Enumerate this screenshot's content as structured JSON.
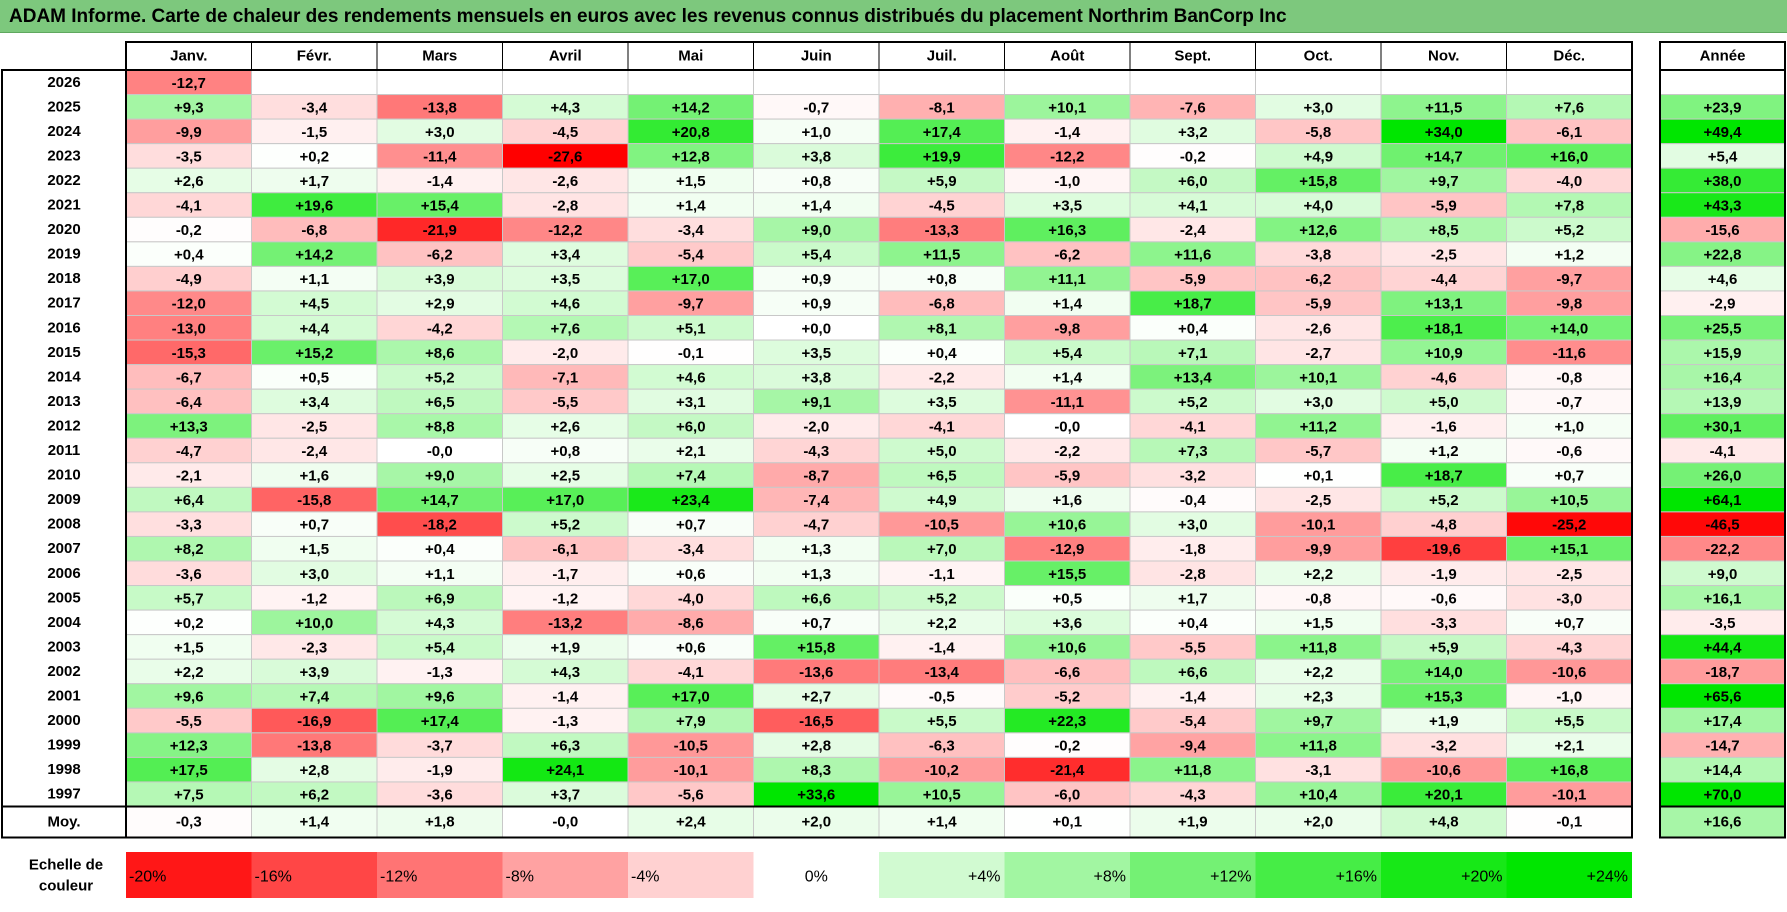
{
  "title": "ADAM Informe. Carte de chaleur des rendements mensuels en euros avec les revenus connus distribués du placement Northrim BanCorp Inc",
  "chart_data": {
    "type": "heatmap",
    "columns": [
      "Janv.",
      "Févr.",
      "Mars",
      "Avril",
      "Mai",
      "Juin",
      "Juil.",
      "Août",
      "Sept.",
      "Oct.",
      "Nov.",
      "Déc."
    ],
    "year_header": "Année",
    "rows": [
      {
        "label": "2026",
        "values": [
          "-12,7",
          "",
          "",
          "",
          "",
          "",
          "",
          "",
          "",
          "",
          "",
          ""
        ],
        "year": ""
      },
      {
        "label": "2025",
        "values": [
          "+9,3",
          "-3,4",
          "-13,8",
          "+4,3",
          "+14,2",
          "-0,7",
          "-8,1",
          "+10,1",
          "-7,6",
          "+3,0",
          "+11,5",
          "+7,6"
        ],
        "year": "+23,9"
      },
      {
        "label": "2024",
        "values": [
          "-9,9",
          "-1,5",
          "+3,0",
          "-4,5",
          "+20,8",
          "+1,0",
          "+17,4",
          "-1,4",
          "+3,2",
          "-5,8",
          "+34,0",
          "-6,1"
        ],
        "year": "+49,4"
      },
      {
        "label": "2023",
        "values": [
          "-3,5",
          "+0,2",
          "-11,4",
          "-27,6",
          "+12,8",
          "+3,8",
          "+19,9",
          "-12,2",
          "-0,2",
          "+4,9",
          "+14,7",
          "+16,0"
        ],
        "year": "+5,4"
      },
      {
        "label": "2022",
        "values": [
          "+2,6",
          "+1,7",
          "-1,4",
          "-2,6",
          "+1,5",
          "+0,8",
          "+5,9",
          "-1,0",
          "+6,0",
          "+15,8",
          "+9,7",
          "-4,0"
        ],
        "year": "+38,0"
      },
      {
        "label": "2021",
        "values": [
          "-4,1",
          "+19,6",
          "+15,4",
          "-2,8",
          "+1,4",
          "+1,4",
          "-4,5",
          "+3,5",
          "+4,1",
          "+4,0",
          "-5,9",
          "+7,8"
        ],
        "year": "+43,3"
      },
      {
        "label": "2020",
        "values": [
          "-0,2",
          "-6,8",
          "-21,9",
          "-12,2",
          "-3,4",
          "+9,0",
          "-13,3",
          "+16,3",
          "-2,4",
          "+12,6",
          "+8,5",
          "+5,2"
        ],
        "year": "-15,6"
      },
      {
        "label": "2019",
        "values": [
          "+0,4",
          "+14,2",
          "-6,2",
          "+3,4",
          "-5,4",
          "+5,4",
          "+11,5",
          "-6,2",
          "+11,6",
          "-3,8",
          "-2,5",
          "+1,2"
        ],
        "year": "+22,8"
      },
      {
        "label": "2018",
        "values": [
          "-4,9",
          "+1,1",
          "+3,9",
          "+3,5",
          "+17,0",
          "+0,9",
          "+0,8",
          "+11,1",
          "-5,9",
          "-6,2",
          "-4,4",
          "-9,7"
        ],
        "year": "+4,6"
      },
      {
        "label": "2017",
        "values": [
          "-12,0",
          "+4,5",
          "+2,9",
          "+4,6",
          "-9,7",
          "+0,9",
          "-6,8",
          "+1,4",
          "+18,7",
          "-5,9",
          "+13,1",
          "-9,8"
        ],
        "year": "-2,9"
      },
      {
        "label": "2016",
        "values": [
          "-13,0",
          "+4,4",
          "-4,2",
          "+7,6",
          "+5,1",
          "+0,0",
          "+8,1",
          "-9,8",
          "+0,4",
          "-2,6",
          "+18,1",
          "+14,0"
        ],
        "year": "+25,5"
      },
      {
        "label": "2015",
        "values": [
          "-15,3",
          "+15,2",
          "+8,6",
          "-2,0",
          "-0,1",
          "+3,5",
          "+0,4",
          "+5,4",
          "+7,1",
          "-2,7",
          "+10,9",
          "-11,6"
        ],
        "year": "+15,9"
      },
      {
        "label": "2014",
        "values": [
          "-6,7",
          "+0,5",
          "+5,2",
          "-7,1",
          "+4,6",
          "+3,8",
          "-2,2",
          "+1,4",
          "+13,4",
          "+10,1",
          "-4,6",
          "-0,8"
        ],
        "year": "+16,4"
      },
      {
        "label": "2013",
        "values": [
          "-6,4",
          "+3,4",
          "+6,5",
          "-5,5",
          "+3,1",
          "+9,1",
          "+3,5",
          "-11,1",
          "+5,2",
          "+3,0",
          "+5,0",
          "-0,7"
        ],
        "year": "+13,9"
      },
      {
        "label": "2012",
        "values": [
          "+13,3",
          "-2,5",
          "+8,8",
          "+2,6",
          "+6,0",
          "-2,0",
          "-4,1",
          "-0,0",
          "-4,1",
          "+11,2",
          "-1,6",
          "+1,0"
        ],
        "year": "+30,1"
      },
      {
        "label": "2011",
        "values": [
          "-4,7",
          "-2,4",
          "-0,0",
          "+0,8",
          "+2,1",
          "-4,3",
          "+5,0",
          "-2,2",
          "+7,3",
          "-5,7",
          "+1,2",
          "-0,6"
        ],
        "year": "-4,1"
      },
      {
        "label": "2010",
        "values": [
          "-2,1",
          "+1,6",
          "+9,0",
          "+2,5",
          "+7,4",
          "-8,7",
          "+6,5",
          "-5,9",
          "-3,2",
          "+0,1",
          "+18,7",
          "+0,7"
        ],
        "year": "+26,0"
      },
      {
        "label": "2009",
        "values": [
          "+6,4",
          "-15,8",
          "+14,7",
          "+17,0",
          "+23,4",
          "-7,4",
          "+4,9",
          "+1,6",
          "-0,4",
          "-2,5",
          "+5,2",
          "+10,5"
        ],
        "year": "+64,1"
      },
      {
        "label": "2008",
        "values": [
          "-3,3",
          "+0,7",
          "-18,2",
          "+5,2",
          "+0,7",
          "-4,7",
          "-10,5",
          "+10,6",
          "+3,0",
          "-10,1",
          "-4,8",
          "-25,2"
        ],
        "year": "-46,5"
      },
      {
        "label": "2007",
        "values": [
          "+8,2",
          "+1,5",
          "+0,4",
          "-6,1",
          "-3,4",
          "+1,3",
          "+7,0",
          "-12,9",
          "-1,8",
          "-9,9",
          "-19,6",
          "+15,1"
        ],
        "year": "-22,2"
      },
      {
        "label": "2006",
        "values": [
          "-3,6",
          "+3,0",
          "+1,1",
          "-1,7",
          "+0,6",
          "+1,3",
          "-1,1",
          "+15,5",
          "-2,8",
          "+2,2",
          "-1,9",
          "-2,5"
        ],
        "year": "+9,0"
      },
      {
        "label": "2005",
        "values": [
          "+5,7",
          "-1,2",
          "+6,9",
          "-1,2",
          "-4,0",
          "+6,6",
          "+5,2",
          "+0,5",
          "+1,7",
          "-0,8",
          "-0,6",
          "-3,0"
        ],
        "year": "+16,1"
      },
      {
        "label": "2004",
        "values": [
          "+0,2",
          "+10,0",
          "+4,3",
          "-13,2",
          "-8,6",
          "+0,7",
          "+2,2",
          "+3,6",
          "+0,4",
          "+1,5",
          "-3,3",
          "+0,7"
        ],
        "year": "-3,5"
      },
      {
        "label": "2003",
        "values": [
          "+1,5",
          "-2,3",
          "+5,4",
          "+1,9",
          "+0,6",
          "+15,8",
          "-1,4",
          "+10,6",
          "-5,5",
          "+11,8",
          "+5,9",
          "-4,3"
        ],
        "year": "+44,4"
      },
      {
        "label": "2002",
        "values": [
          "+2,2",
          "+3,9",
          "-1,3",
          "+4,3",
          "-4,1",
          "-13,6",
          "-13,4",
          "-6,6",
          "+6,6",
          "+2,2",
          "+14,0",
          "-10,6"
        ],
        "year": "-18,7"
      },
      {
        "label": "2001",
        "values": [
          "+9,6",
          "+7,4",
          "+9,6",
          "-1,4",
          "+17,0",
          "+2,7",
          "-0,5",
          "-5,2",
          "-1,4",
          "+2,3",
          "+15,3",
          "-1,0"
        ],
        "year": "+65,6"
      },
      {
        "label": "2000",
        "values": [
          "-5,5",
          "-16,9",
          "+17,4",
          "-1,3",
          "+7,9",
          "-16,5",
          "+5,5",
          "+22,3",
          "-5,4",
          "+9,7",
          "+1,9",
          "+5,5"
        ],
        "year": "+17,4"
      },
      {
        "label": "1999",
        "values": [
          "+12,3",
          "-13,8",
          "-3,7",
          "+6,3",
          "-10,5",
          "+2,8",
          "-6,3",
          "-0,2",
          "-9,4",
          "+11,8",
          "-3,2",
          "+2,1"
        ],
        "year": "-14,7"
      },
      {
        "label": "1998",
        "values": [
          "+17,5",
          "+2,8",
          "-1,9",
          "+24,1",
          "-10,1",
          "+8,3",
          "-10,2",
          "-21,4",
          "+11,8",
          "-3,1",
          "-10,6",
          "+16,8"
        ],
        "year": "+14,4"
      },
      {
        "label": "1997",
        "values": [
          "+7,5",
          "+6,2",
          "-3,6",
          "+3,7",
          "-5,6",
          "+33,6",
          "+10,5",
          "-6,0",
          "-4,3",
          "+10,4",
          "+20,1",
          "-10,1"
        ],
        "year": "+70,0"
      }
    ],
    "average": {
      "label": "Moy.",
      "values": [
        "-0,3",
        "+1,4",
        "+1,8",
        "-0,0",
        "+2,4",
        "+2,0",
        "+1,4",
        "+0,1",
        "+1,9",
        "+2,0",
        "+4,8",
        "-0,1"
      ],
      "year": "+16,6"
    },
    "scale": {
      "label_lines": [
        "Echelle de",
        "couleur"
      ],
      "steps": [
        "-20%",
        "-16%",
        "-12%",
        "-8%",
        "-4%",
        "0%",
        "+4%",
        "+8%",
        "+12%",
        "+16%",
        "+20%",
        "+24%"
      ],
      "step_values": [
        -20,
        -16,
        -12,
        -8,
        -4,
        0,
        4,
        8,
        12,
        16,
        20,
        24
      ]
    },
    "colors": {
      "negative": "#ff0000",
      "neutral": "#ffffff",
      "positive": "#00e600",
      "title_background": "#7dc87d"
    }
  }
}
